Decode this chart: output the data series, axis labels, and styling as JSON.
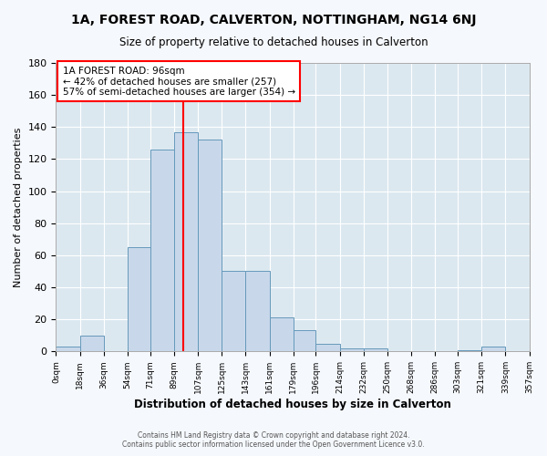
{
  "title": "1A, FOREST ROAD, CALVERTON, NOTTINGHAM, NG14 6NJ",
  "subtitle": "Size of property relative to detached houses in Calverton",
  "xlabel": "Distribution of detached houses by size in Calverton",
  "ylabel": "Number of detached properties",
  "bar_color": "#c8d8ea",
  "bar_edge_color": "#6699bb",
  "background_color": "#dce8f0",
  "fig_background_color": "#f5f8fc",
  "grid_color": "#ffffff",
  "property_line_x": 96,
  "bin_edges": [
    0,
    18,
    36,
    54,
    71,
    89,
    107,
    125,
    143,
    161,
    179,
    196,
    214,
    232,
    250,
    268,
    286,
    303,
    321,
    339,
    357
  ],
  "counts": [
    3,
    10,
    0,
    65,
    126,
    137,
    132,
    50,
    50,
    21,
    13,
    5,
    2,
    2,
    0,
    0,
    0,
    1,
    3,
    0
  ],
  "tick_labels": [
    "0sqm",
    "18sqm",
    "36sqm",
    "54sqm",
    "71sqm",
    "89sqm",
    "107sqm",
    "125sqm",
    "143sqm",
    "161sqm",
    "179sqm",
    "196sqm",
    "214sqm",
    "232sqm",
    "250sqm",
    "268sqm",
    "286sqm",
    "303sqm",
    "321sqm",
    "339sqm",
    "357sqm"
  ],
  "ylim": [
    0,
    180
  ],
  "yticks": [
    0,
    20,
    40,
    60,
    80,
    100,
    120,
    140,
    160,
    180
  ],
  "annotation_title": "1A FOREST ROAD: 96sqm",
  "annotation_line1": "← 42% of detached houses are smaller (257)",
  "annotation_line2": "57% of semi-detached houses are larger (354) →",
  "footer1": "Contains HM Land Registry data © Crown copyright and database right 2024.",
  "footer2": "Contains public sector information licensed under the Open Government Licence v3.0."
}
